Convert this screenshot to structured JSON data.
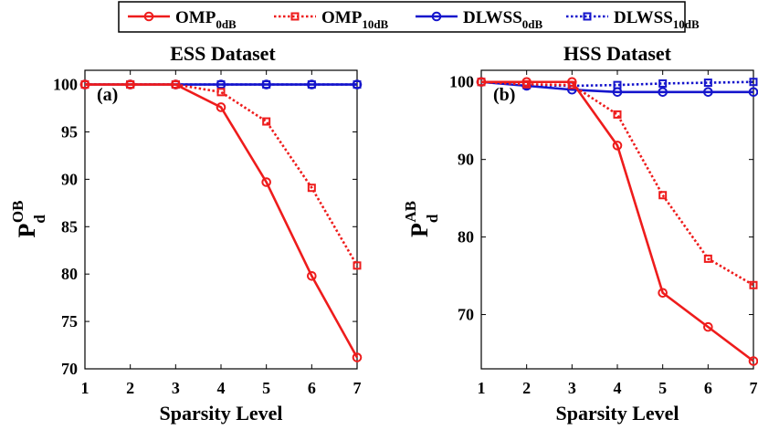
{
  "colors": {
    "omp": "#ee1c1c",
    "dlwss": "#1515cc",
    "axis": "#000000"
  },
  "legend": {
    "items": [
      {
        "base": "OMP",
        "sub": "0dB",
        "color": "#ee1c1c",
        "dash": false,
        "marker": "circle"
      },
      {
        "base": "OMP",
        "sub": "10dB",
        "color": "#ee1c1c",
        "dash": true,
        "marker": "square"
      },
      {
        "base": "DLWSS",
        "sub": "0dB",
        "color": "#1515cc",
        "dash": false,
        "marker": "circle"
      },
      {
        "base": "DLWSS",
        "sub": "10dB",
        "color": "#1515cc",
        "dash": true,
        "marker": "square"
      }
    ]
  },
  "chart_data": [
    {
      "type": "line",
      "title": "ESS Dataset",
      "panel_label": "(a)",
      "xlabel": "Sparsity Level",
      "ylabel": {
        "base": "P",
        "sub": "d",
        "sup": "OB"
      },
      "x": [
        1,
        2,
        3,
        4,
        5,
        6,
        7
      ],
      "xlim": [
        1,
        7
      ],
      "ylim": [
        70,
        101.5
      ],
      "yticks": [
        70,
        75,
        80,
        85,
        90,
        95,
        100
      ],
      "series": [
        {
          "name": "OMP 0dB",
          "values": [
            100,
            100,
            100,
            97.6,
            89.7,
            79.8,
            71.2
          ]
        },
        {
          "name": "OMP 10dB",
          "values": [
            100,
            100,
            100,
            99.2,
            96.1,
            89.1,
            80.9
          ]
        },
        {
          "name": "DLWSS 0dB",
          "values": [
            100,
            100,
            100,
            100,
            100,
            100,
            100
          ]
        },
        {
          "name": "DLWSS 10dB",
          "values": [
            100,
            100,
            100,
            100,
            100,
            100,
            100
          ]
        }
      ]
    },
    {
      "type": "line",
      "title": "HSS Dataset",
      "panel_label": "(b)",
      "xlabel": "Sparsity Level",
      "ylabel": {
        "base": "P",
        "sub": "d",
        "sup": "AB"
      },
      "x": [
        1,
        2,
        3,
        4,
        5,
        6,
        7
      ],
      "xlim": [
        1,
        7
      ],
      "ylim": [
        63,
        101.5
      ],
      "yticks": [
        70,
        80,
        90,
        100
      ],
      "series": [
        {
          "name": "OMP 0dB",
          "values": [
            100,
            100,
            100,
            91.8,
            72.8,
            68.4,
            64
          ]
        },
        {
          "name": "OMP 10dB",
          "values": [
            100,
            99.7,
            99.6,
            95.8,
            85.4,
            77.2,
            73.8
          ]
        },
        {
          "name": "DLWSS 0dB",
          "values": [
            100,
            99.5,
            99,
            98.7,
            98.7,
            98.7,
            98.7
          ]
        },
        {
          "name": "DLWSS 10dB",
          "values": [
            100,
            99.6,
            99.5,
            99.6,
            99.8,
            99.9,
            100
          ]
        }
      ]
    }
  ]
}
